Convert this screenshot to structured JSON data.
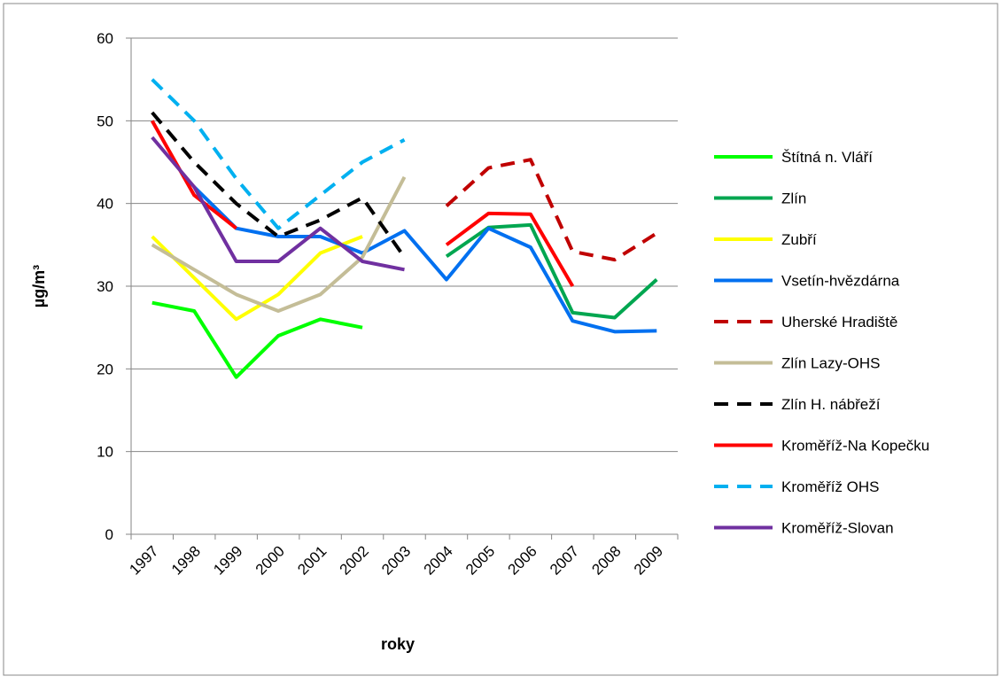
{
  "chart_data": {
    "type": "line",
    "x_label": "roky",
    "y_label": "µg/m³",
    "categories": [
      "1997",
      "1998",
      "1999",
      "2000",
      "2001",
      "2002",
      "2003",
      "2004",
      "2005",
      "2006",
      "2007",
      "2008",
      "2009"
    ],
    "ylim": [
      0,
      60
    ],
    "yticks": [
      0,
      10,
      20,
      30,
      40,
      50,
      60
    ],
    "grid": true,
    "legend": "right",
    "series": [
      {
        "name": "Štítná n. Vláří",
        "color": "#00ff00",
        "dashed": false,
        "values": [
          28,
          27,
          19,
          24,
          26,
          25,
          null,
          null,
          null,
          null,
          null,
          null,
          null
        ]
      },
      {
        "name": "Zlín",
        "color": "#00a650",
        "dashed": false,
        "values": [
          null,
          null,
          null,
          null,
          null,
          null,
          null,
          33.6,
          37.1,
          37.4,
          26.8,
          26.2,
          30.8
        ]
      },
      {
        "name": "Zubří",
        "color": "#ffff00",
        "dashed": false,
        "values": [
          36,
          31,
          26,
          29,
          34,
          36,
          null,
          null,
          null,
          null,
          null,
          null,
          null
        ]
      },
      {
        "name": "Vsetín-hvězdárna",
        "color": "#0070f0",
        "dashed": false,
        "values": [
          null,
          42,
          37,
          36,
          36,
          34,
          36.7,
          30.8,
          37,
          34.7,
          25.8,
          24.5,
          24.6
        ]
      },
      {
        "name": "Uherské Hradiště",
        "color": "#c00000",
        "dashed": true,
        "values": [
          null,
          null,
          null,
          null,
          null,
          null,
          null,
          39.7,
          44.3,
          45.3,
          34.2,
          33.2,
          36.4
        ]
      },
      {
        "name": "Zlín Lazy-OHS",
        "color": "#c4bd97",
        "dashed": false,
        "values": [
          35,
          32,
          29,
          27,
          29,
          33.5,
          43.2,
          null,
          null,
          null,
          null,
          null,
          null
        ]
      },
      {
        "name": "Zlín H. nábřeží",
        "color": "#000000",
        "dashed": true,
        "values": [
          51,
          45,
          40,
          36,
          38,
          40.7,
          33.5,
          null,
          null,
          null,
          null,
          null,
          null
        ]
      },
      {
        "name": "Kroměříž-Na Kopečku",
        "color": "#ff0000",
        "dashed": false,
        "values": [
          50,
          41,
          37,
          null,
          null,
          null,
          null,
          35,
          38.8,
          38.7,
          30,
          null,
          null
        ]
      },
      {
        "name": "Kroměříž OHS",
        "color": "#00b0f0",
        "dashed": true,
        "values": [
          55,
          50,
          43,
          37,
          41,
          45,
          47.7,
          null,
          null,
          null,
          null,
          null,
          null
        ]
      },
      {
        "name": "Kroměříž-Slovan",
        "color": "#7030a0",
        "dashed": false,
        "values": [
          48,
          42,
          33,
          33,
          37,
          33,
          32,
          null,
          null,
          null,
          null,
          null,
          null
        ]
      }
    ]
  }
}
